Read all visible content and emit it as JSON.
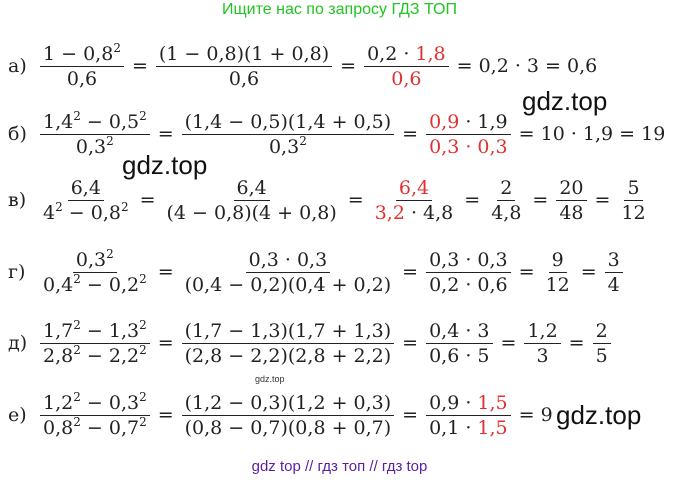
{
  "header": {
    "text": "Ищите нас по запросу ГДЗ ТОП"
  },
  "footer": {
    "text": "gdz top  //  гдз топ  //  гдз top"
  },
  "watermarks": {
    "big1": "gdz.top",
    "big2": "gdz.top",
    "big3": "gdz.top",
    "small": "gdz.top"
  },
  "rows": {
    "a": {
      "label": "а)",
      "f1n": "1 − 0,8",
      "p2": "2",
      "f1d": "0,6",
      "eq": "=",
      "f2n": "(1 − 0,8)(1 + 0,8)",
      "f2d": "0,6",
      "f3n_a": "0,2 · ",
      "f3n_b": "1,8",
      "f3d": "0,6",
      "tail": "= 0,2 · 3 = 0,6"
    },
    "b": {
      "label": "б)",
      "f1n_a": "1,4",
      "f1n_b": " − 0,5",
      "f1d": "0,3",
      "p2": "2",
      "f2n": "(1,4 − 0,5)(1,4 + 0,5)",
      "f2d": "0,3",
      "f3n_a": "0,9",
      "f3n_b": " · 1,9",
      "f3d": "0,3 · 0,3",
      "tail": "= 10 · 1,9 = 19"
    },
    "c": {
      "label": "в)",
      "f1n": "6,4",
      "f1d_a": "4",
      "f1d_b": " − 0,8",
      "p2": "2",
      "f2n": "6,4",
      "f2d": "(4 − 0,8)(4 + 0,8)",
      "f3n": "6,4",
      "f3d_a": "3,2",
      "f3d_b": " · 4,8",
      "f4n": "2",
      "f4d": "4,8",
      "f5n": "20",
      "f5d": "48",
      "f6n": "5",
      "f6d": "12"
    },
    "d": {
      "label": "г)",
      "f1n": "0,3",
      "f1d_a": "0,4",
      "f1d_b": " − 0,2",
      "p2": "2",
      "f2n": "0,3 · 0,3",
      "f2d": "(0,4 − 0,2)(0,4 + 0,2)",
      "f3n": "0,3 · 0,3",
      "f3d": "0,2 · 0,6",
      "f4n": "9",
      "f4d": "12",
      "f5n": "3",
      "f5d": "4"
    },
    "e": {
      "label": "д)",
      "f1n_a": "1,7",
      "f1n_b": " − 1,3",
      "f1d_a": "2,8",
      "f1d_b": " − 2,2",
      "p2": "2",
      "f2n": "(1,7 − 1,3)(1,7 + 1,3)",
      "f2d": "(2,8 − 2,2)(2,8 + 2,2)",
      "f3n": "0,4 · 3",
      "f3d": "0,6 · 5",
      "f4n": "1,2",
      "f4d": "3",
      "f5n": "2",
      "f5d": "5"
    },
    "f": {
      "label": "е)",
      "f1n_a": "1,2",
      "f1n_b": " − 0,3",
      "f1d_a": "0,8",
      "f1d_b": " − 0,7",
      "p2": "2",
      "f2n": "(1,2 − 0,3)(1,2 + 0,3)",
      "f2d": "(0,8 − 0,7)(0,8 + 0,7)",
      "f3n_a": "0,9 · ",
      "f3n_b": "1,5",
      "f3d_a": "0,1 · ",
      "f3d_b": "1,5",
      "tail": "= 9"
    }
  }
}
